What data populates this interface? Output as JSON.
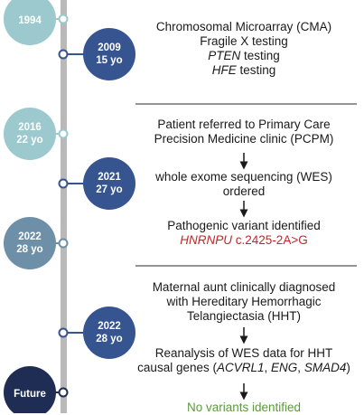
{
  "colors": {
    "node_light": "#9cc9ce",
    "node_mid": "#6d8fa8",
    "node_dark": "#36548f",
    "node_darkest": "#1f2d55",
    "line": "#b9b9b9",
    "variant": "#c8232c",
    "no_variant": "#5b9a3c"
  },
  "timeline": {
    "nodes": [
      {
        "id": "1994",
        "line1": "1994",
        "line2": ""
      },
      {
        "id": "2009",
        "line1": "2009",
        "line2": "15 yo"
      },
      {
        "id": "2016",
        "line1": "2016",
        "line2": "22 yo"
      },
      {
        "id": "2021",
        "line1": "2021",
        "line2": "27 yo"
      },
      {
        "id": "2022a",
        "line1": "2022",
        "line2": "28 yo"
      },
      {
        "id": "2022b",
        "line1": "2022",
        "line2": "28 yo"
      },
      {
        "id": "future",
        "line1": "Future",
        "line2": ""
      }
    ]
  },
  "events": {
    "e1": {
      "line1": "Chromosomal Microarray (CMA)",
      "line2": "Fragile X testing",
      "line3_italic": "PTEN",
      "line3_rest": " testing",
      "line4_italic": "HFE",
      "line4_rest": " testing"
    },
    "e2": {
      "line1": "Patient referred to Primary Care",
      "line2": "Precision Medicine clinic (PCPM)"
    },
    "e3": {
      "line1": "whole exome sequencing (WES)",
      "line2": "ordered"
    },
    "e4": {
      "line1": "Pathogenic variant identified",
      "gene": "HNRNPU",
      "variant": " c.2425-2A>G"
    },
    "e5": {
      "line1": "Maternal aunt clinically diagnosed",
      "line2": "with Hereditary Hemorrhagic",
      "line3": "Telangiectasia (HHT)"
    },
    "e6": {
      "line1": "Reanalysis of WES data for HHT",
      "line2_pre": "causal genes (",
      "gene1": "ACVRL1",
      "sep1": ", ",
      "gene2": "ENG",
      "sep2": ", ",
      "gene3": "SMAD4",
      "line2_post": ")"
    },
    "e7": {
      "line1": "No variants identified"
    }
  }
}
